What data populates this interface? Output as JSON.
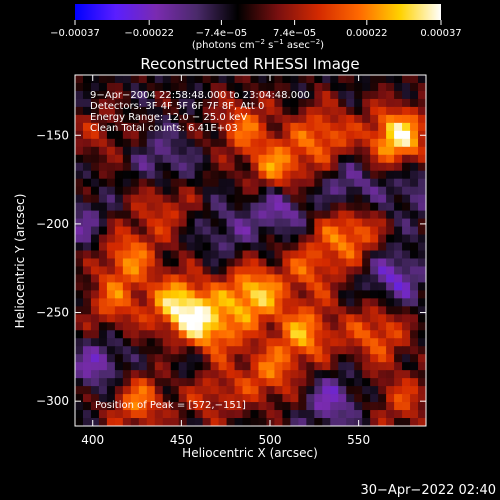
{
  "chart_data": {
    "type": "heatmap",
    "title": "Reconstructed RHESSI Image",
    "xlabel": "Heliocentric X (arcsec)",
    "ylabel": "Heliocentric Y (arcsec)",
    "xlim": [
      390,
      588
    ],
    "ylim": [
      -314,
      -116
    ],
    "x_ticks": [
      400,
      450,
      500,
      550
    ],
    "y_ticks": [
      -150,
      -200,
      -250,
      -300
    ],
    "x_tick_labels": [
      "400",
      "450",
      "500",
      "550"
    ],
    "y_tick_labels": [
      "−150",
      "−200",
      "−250",
      "−300"
    ],
    "colorbar": {
      "range": [
        -0.00037,
        0.00037
      ],
      "tick_values": [
        -0.00037,
        -0.00022,
        -7.4e-05,
        7.4e-05,
        0.00022,
        0.00037
      ],
      "tick_labels": [
        "−0.00037",
        "−0.00022",
        "−7.4e−05",
        "7.4e−05",
        "0.00022",
        "0.00037"
      ],
      "unit_prefix": "(photons cm",
      "unit_exp1": "−2",
      "unit_mid1": " s",
      "unit_exp2": "−1",
      "unit_mid2": " asec",
      "unit_exp3": "−2",
      "unit_suffix": ")",
      "palette": [
        "#0000ff",
        "#5a1eff",
        "#7a2bb0",
        "#4a2a6a",
        "#000000",
        "#7a1010",
        "#d42a00",
        "#ff6a00",
        "#ffd200",
        "#ffffff"
      ]
    },
    "annotations": [
      "9−Apr−2004 22:58:48.000 to 23:04:48.000",
      "Detectors: 3F 4F 5F 6F 7F 8F, Att 0",
      "Energy Range: 12.0 − 25.0 keV",
      "Clean    Total counts: 6.41E+03"
    ],
    "peak_label": "Position of Peak = [572,−151]",
    "peak": [
      572,
      -151
    ],
    "hotspots": [
      {
        "x": 572,
        "y": -151,
        "v": 1.0
      },
      {
        "x": 450,
        "y": -246,
        "v": 0.95
      },
      {
        "x": 490,
        "y": -240,
        "v": 0.9
      },
      {
        "x": 466,
        "y": -262,
        "v": 0.85
      },
      {
        "x": 505,
        "y": -170,
        "v": 0.72
      },
      {
        "x": 545,
        "y": -205,
        "v": 0.7
      },
      {
        "x": 530,
        "y": -150,
        "v": 0.62
      },
      {
        "x": 485,
        "y": -145,
        "v": 0.55
      },
      {
        "x": 420,
        "y": -218,
        "v": 0.62
      },
      {
        "x": 412,
        "y": -245,
        "v": 0.5
      },
      {
        "x": 520,
        "y": -262,
        "v": 0.7
      },
      {
        "x": 560,
        "y": -262,
        "v": 0.6
      },
      {
        "x": 500,
        "y": -285,
        "v": 0.55
      },
      {
        "x": 425,
        "y": -300,
        "v": 0.62
      },
      {
        "x": 468,
        "y": -295,
        "v": 0.45
      },
      {
        "x": 575,
        "y": -300,
        "v": 0.42
      },
      {
        "x": 440,
        "y": -190,
        "v": 0.42
      },
      {
        "x": 523,
        "y": -225,
        "v": 0.5
      },
      {
        "x": 404,
        "y": -150,
        "v": 0.28
      }
    ],
    "coldspots": [
      {
        "x": 505,
        "y": -190,
        "v": 1.0
      },
      {
        "x": 570,
        "y": -230,
        "v": 0.9
      },
      {
        "x": 545,
        "y": -180,
        "v": 0.75
      },
      {
        "x": 405,
        "y": -280,
        "v": 0.85
      },
      {
        "x": 440,
        "y": -165,
        "v": 0.65
      },
      {
        "x": 460,
        "y": -275,
        "v": 0.7
      },
      {
        "x": 535,
        "y": -300,
        "v": 0.8
      },
      {
        "x": 475,
        "y": -205,
        "v": 0.5
      },
      {
        "x": 395,
        "y": -200,
        "v": 0.55
      },
      {
        "x": 580,
        "y": -180,
        "v": 0.55
      }
    ],
    "grid": false
  },
  "footer_timestamp": "30−Apr−2022 02:40"
}
